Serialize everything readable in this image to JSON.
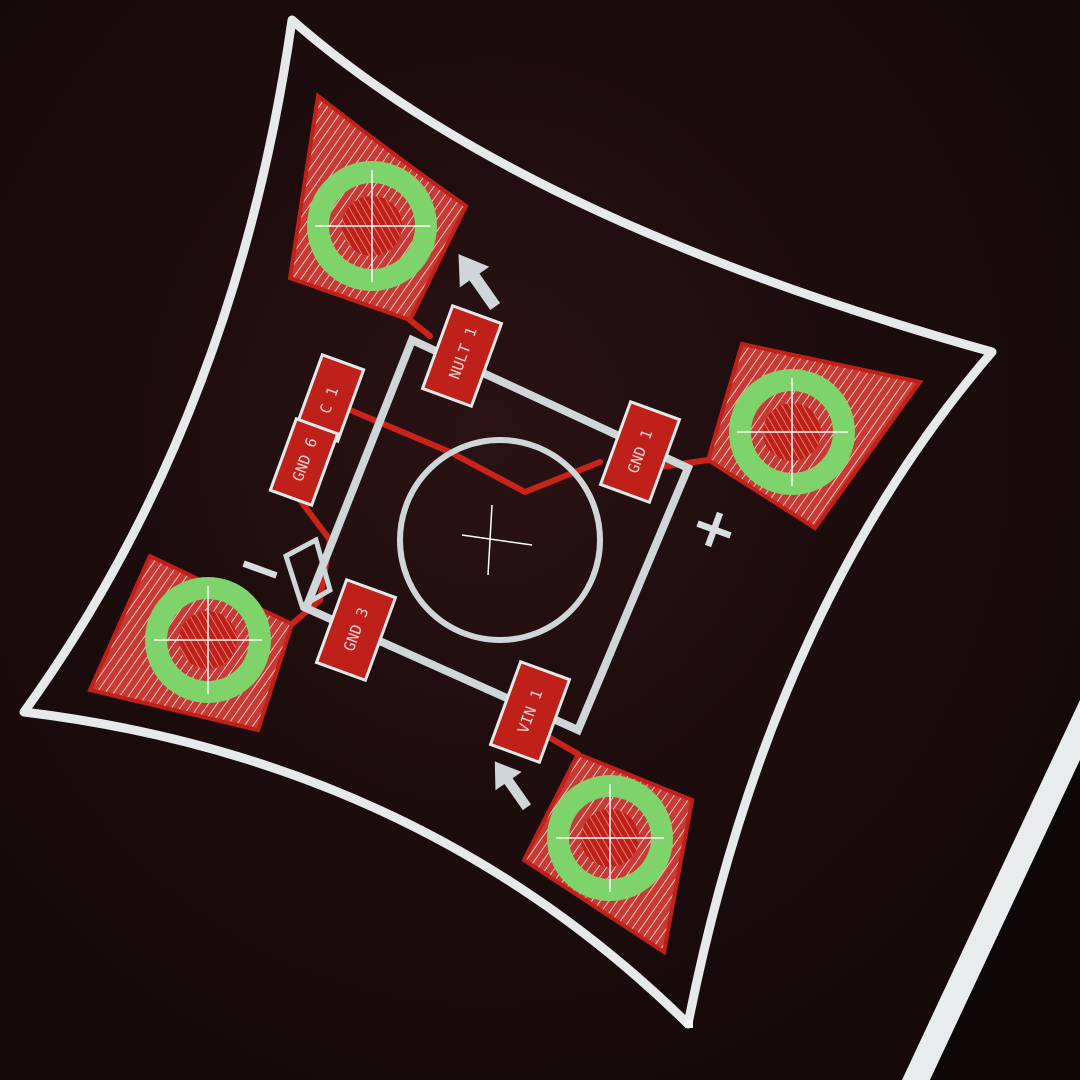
{
  "pcb": {
    "polarity_plus": "+",
    "polarity_minus": "−",
    "component_labels": [
      {
        "id": "u1",
        "text": "NULT 1"
      },
      {
        "id": "u2",
        "text": "GND 1"
      },
      {
        "id": "u3",
        "text": "C 1"
      },
      {
        "id": "u4",
        "text": "GND 6"
      },
      {
        "id": "u5",
        "text": "GND 3"
      },
      {
        "id": "u6",
        "text": "VIN 1"
      }
    ],
    "colors": {
      "board_outline": "#e6e9ea",
      "copper": "#c0201a",
      "via_ring": "#7fd36b",
      "background": "#1a0b0c"
    }
  }
}
